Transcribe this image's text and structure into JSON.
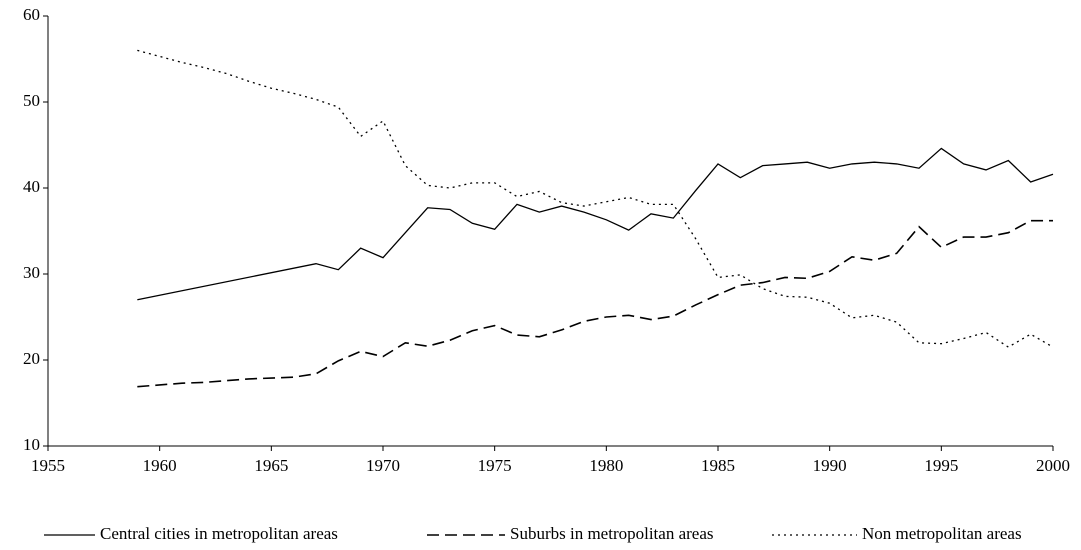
{
  "chart_data": {
    "type": "line",
    "xlim": [
      1955,
      2000
    ],
    "xticks": [
      1955,
      1960,
      1965,
      1970,
      1975,
      1980,
      1985,
      1990,
      1995,
      2000
    ],
    "ylim": [
      10,
      60
    ],
    "yticks": [
      10,
      20,
      30,
      40,
      50,
      60
    ],
    "grid": false,
    "legend": "bottom",
    "series": [
      {
        "name": "Central cities in metropolitan areas",
        "color": "#000000",
        "dash": "solid",
        "x": [
          1959,
          1967,
          1968,
          1969,
          1970,
          1971,
          1972,
          1973,
          1974,
          1975,
          1976,
          1977,
          1978,
          1979,
          1980,
          1981,
          1982,
          1983,
          1984,
          1985,
          1986,
          1987,
          1988,
          1989,
          1990,
          1991,
          1992,
          1993,
          1994,
          1995,
          1996,
          1997,
          1998,
          1999,
          2000
        ],
        "values": [
          27.0,
          31.2,
          30.5,
          33.0,
          31.9,
          34.8,
          37.7,
          37.5,
          35.9,
          35.2,
          38.1,
          37.2,
          37.9,
          37.2,
          36.3,
          35.1,
          37.0,
          36.5,
          39.7,
          42.8,
          41.2,
          42.6,
          42.8,
          43.0,
          42.3,
          42.8,
          43.0,
          42.8,
          42.3,
          44.6,
          42.8,
          42.1,
          43.2,
          40.7,
          41.6
        ]
      },
      {
        "name": "Suburbs in metropolitan areas",
        "color": "#000000",
        "dash": "dashed",
        "x": [
          1959,
          1960,
          1961,
          1962,
          1963,
          1964,
          1965,
          1966,
          1967,
          1968,
          1969,
          1970,
          1971,
          1972,
          1973,
          1974,
          1975,
          1976,
          1977,
          1978,
          1979,
          1980,
          1981,
          1982,
          1983,
          1984,
          1985,
          1986,
          1987,
          1988,
          1989,
          1990,
          1991,
          1992,
          1993,
          1994,
          1995,
          1996,
          1997,
          1998,
          1999,
          2000
        ],
        "values": [
          16.9,
          17.1,
          17.3,
          17.4,
          17.6,
          17.8,
          17.9,
          18.0,
          18.4,
          19.9,
          21.0,
          20.4,
          22.0,
          21.6,
          22.3,
          23.4,
          24.0,
          22.9,
          22.7,
          23.5,
          24.5,
          25.0,
          25.2,
          24.7,
          25.1,
          26.4,
          27.6,
          28.7,
          29.0,
          29.6,
          29.5,
          30.3,
          32.0,
          31.6,
          32.4,
          35.5,
          33.1,
          34.3,
          34.3,
          34.8,
          36.2,
          36.2
        ]
      },
      {
        "name": "Non metropolitan areas",
        "color": "#000000",
        "dash": "dotted",
        "x": [
          1959,
          1960,
          1961,
          1962,
          1963,
          1964,
          1965,
          1966,
          1967,
          1968,
          1969,
          1970,
          1971,
          1972,
          1973,
          1974,
          1975,
          1976,
          1977,
          1978,
          1979,
          1980,
          1981,
          1982,
          1983,
          1984,
          1985,
          1986,
          1987,
          1988,
          1989,
          1990,
          1991,
          1992,
          1993,
          1994,
          1995,
          1996,
          1997,
          1998,
          1999,
          2000
        ],
        "values": [
          56.0,
          55.3,
          54.6,
          54.0,
          53.3,
          52.4,
          51.6,
          51.0,
          50.3,
          49.4,
          46.0,
          47.8,
          42.6,
          40.3,
          40.0,
          40.6,
          40.6,
          39.0,
          39.6,
          38.3,
          37.9,
          38.4,
          38.9,
          38.1,
          38.1,
          34.1,
          29.6,
          29.9,
          28.3,
          27.4,
          27.3,
          26.6,
          24.9,
          25.2,
          24.4,
          22.0,
          21.9,
          22.5,
          23.2,
          21.5,
          23.0,
          21.5
        ]
      }
    ]
  }
}
